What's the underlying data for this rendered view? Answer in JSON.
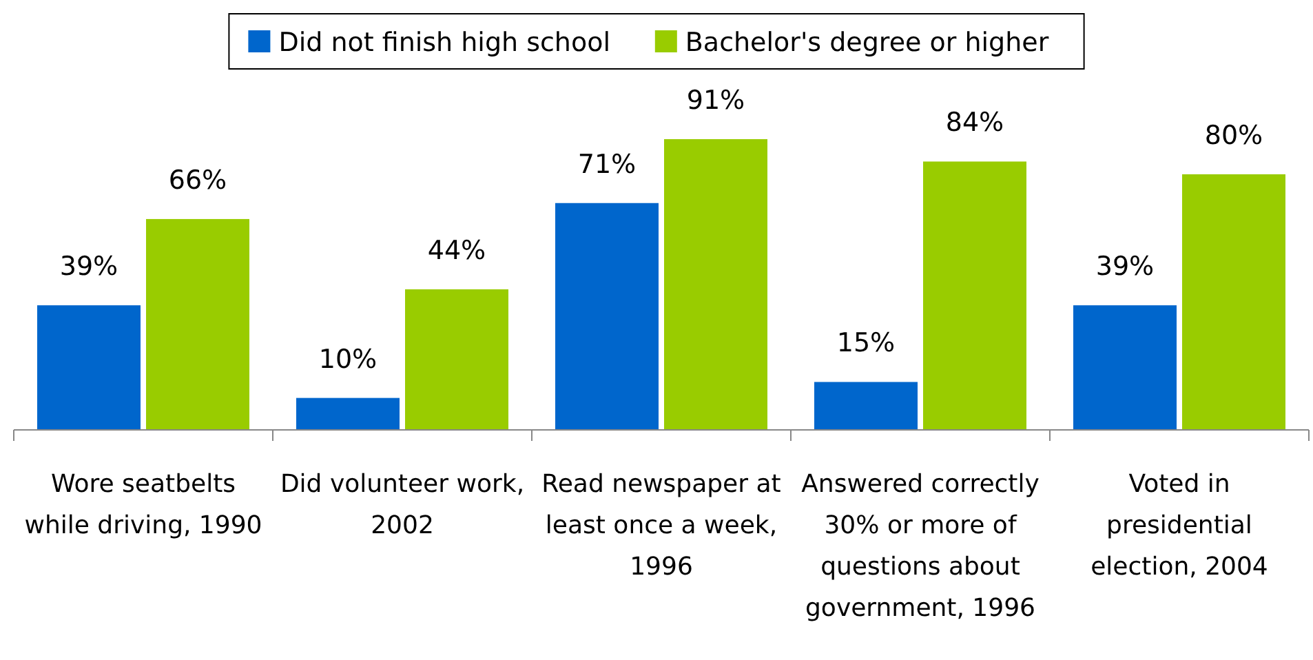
{
  "chart_data": {
    "type": "bar",
    "categories": [
      "Wore seatbelts while driving, 1990",
      "Did volunteer work, 2002",
      "Read newspaper at least once a week, 1996",
      "Answered correctly 30% or more of questions about government, 1996",
      "Voted in presidential election, 2004"
    ],
    "series": [
      {
        "name": "Did not finish high school",
        "color": "#0066cc",
        "values": [
          39,
          10,
          71,
          15,
          39
        ],
        "value_labels": [
          "39%",
          "10%",
          "71%",
          "15%",
          "39%"
        ]
      },
      {
        "name": "Bachelor's degree or higher",
        "color": "#99cc00",
        "values": [
          66,
          44,
          91,
          84,
          80
        ],
        "value_labels": [
          "66%",
          "44%",
          "91%",
          "84%",
          "80%"
        ]
      }
    ],
    "legend": "top",
    "grid": false
  }
}
